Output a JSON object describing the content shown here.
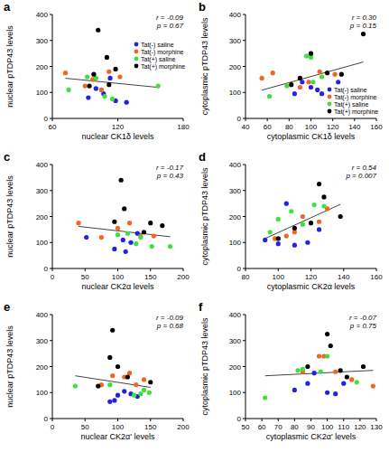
{
  "chart_data": [
    {
      "type": "scatter",
      "title": "a",
      "x_label": "nuclear CK1δ levels",
      "y_label": "nuclear pTDP43 levels",
      "annotations": [
        "r = -0.09",
        "p = 0.67"
      ],
      "xlim": [
        60,
        180
      ],
      "xticks": [
        60,
        120,
        180
      ],
      "ylim": [
        0,
        400
      ],
      "yticks": [
        0,
        100,
        200,
        300,
        400
      ],
      "marker": "circle",
      "legend": "right",
      "series": [
        {
          "name": "Tat(-) saline",
          "color": "#2323e0",
          "x": [
            93,
            100,
            107,
            113,
            118,
            128
          ],
          "values": [
            80,
            115,
            95,
            155,
            68,
            62
          ]
        },
        {
          "name": "Tat(-) morphine",
          "color": "#f26522",
          "x": [
            72,
            90,
            97,
            105,
            112,
            122
          ],
          "values": [
            175,
            125,
            150,
            110,
            180,
            160
          ]
        },
        {
          "name": "Tat(+) saline",
          "color": "#3ee03e",
          "x": [
            75,
            92,
            100,
            108,
            115,
            157
          ],
          "values": [
            110,
            160,
            155,
            85,
            75,
            125
          ]
        },
        {
          "name": "Tat(+) morphine",
          "color": "#000000",
          "x": [
            94,
            98,
            102,
            110,
            118,
            112
          ],
          "values": [
            125,
            170,
            340,
            235,
            190,
            130
          ]
        }
      ]
    },
    {
      "type": "scatter",
      "title": "b",
      "x_label": "cytoplasmic CK1δ levels",
      "y_label": "cytoplasmic pTDP43 levels",
      "annotations": [
        "r = 0.30",
        "p = 0.15"
      ],
      "xlim": [
        40,
        160
      ],
      "xticks": [
        40,
        60,
        80,
        100,
        120,
        140,
        160
      ],
      "ylim": [
        0,
        400
      ],
      "yticks": [
        0,
        100,
        200,
        300,
        400
      ],
      "marker": "circle",
      "legend": "lower right",
      "series": [
        {
          "name": "Tat(-) saline",
          "color": "#2323e0",
          "x": [
            85,
            92,
            100,
            106,
            110,
            125
          ],
          "values": [
            95,
            140,
            120,
            110,
            95,
            140
          ]
        },
        {
          "name": "Tat(-) morphine",
          "color": "#f26522",
          "x": [
            55,
            65,
            90,
            98,
            108,
            122
          ],
          "values": [
            155,
            175,
            120,
            140,
            180,
            170
          ]
        },
        {
          "name": "Tat(+) saline",
          "color": "#3ee03e",
          "x": [
            62,
            78,
            96,
            100,
            102,
            110
          ],
          "values": [
            85,
            125,
            240,
            235,
            140,
            160
          ]
        },
        {
          "name": "Tat(+) morphine",
          "color": "#000000",
          "x": [
            82,
            90,
            100,
            115,
            128,
            148
          ],
          "values": [
            130,
            155,
            250,
            175,
            170,
            325
          ]
        }
      ]
    },
    {
      "type": "scatter",
      "title": "c",
      "x_label": "nuclear CK2α levels",
      "y_label": "nuclear pTDP43 levels",
      "annotations": [
        "r = -0.17",
        "p = 0.43"
      ],
      "xlim": [
        0,
        200
      ],
      "xticks": [
        0,
        50,
        100,
        150,
        200
      ],
      "ylim": [
        0,
        400
      ],
      "yticks": [
        0,
        100,
        200,
        300,
        400
      ],
      "marker": "circle",
      "series": [
        {
          "name": "Tat(-) saline",
          "color": "#2323e0",
          "x": [
            52,
            95,
            108,
            112,
            120,
            130
          ],
          "values": [
            120,
            75,
            110,
            65,
            100,
            135
          ]
        },
        {
          "name": "Tat(-) morphine",
          "color": "#f26522",
          "x": [
            40,
            75,
            100,
            118,
            135,
            155
          ],
          "values": [
            175,
            120,
            155,
            175,
            125,
            125
          ]
        },
        {
          "name": "Tat(+) saline",
          "color": "#3ee03e",
          "x": [
            100,
            115,
            128,
            135,
            152,
            180
          ],
          "values": [
            130,
            135,
            95,
            120,
            85,
            85
          ]
        },
        {
          "name": "Tat(+) morphine",
          "color": "#000000",
          "x": [
            95,
            105,
            110,
            140,
            150,
            168
          ],
          "values": [
            180,
            340,
            230,
            140,
            175,
            165
          ]
        }
      ]
    },
    {
      "type": "scatter",
      "title": "d",
      "x_label": "cytoplasmic CK2α levels",
      "y_label": "cytoplasmic pTDP43 levels",
      "annotations": [
        "r = 0.54",
        "p = 0.007"
      ],
      "xlim": [
        80,
        160
      ],
      "xticks": [
        80,
        100,
        120,
        140,
        160
      ],
      "ylim": [
        0,
        400
      ],
      "yticks": [
        0,
        100,
        200,
        300,
        400
      ],
      "marker": "circle",
      "series": [
        {
          "name": "Tat(-) saline",
          "color": "#2323e0",
          "x": [
            92,
            100,
            105,
            110,
            118,
            125
          ],
          "values": [
            110,
            95,
            250,
            90,
            100,
            150
          ]
        },
        {
          "name": "Tat(-) morphine",
          "color": "#f26522",
          "x": [
            98,
            105,
            110,
            115,
            125,
            130
          ],
          "values": [
            115,
            125,
            140,
            200,
            180,
            230
          ]
        },
        {
          "name": "Tat(+) saline",
          "color": "#3ee03e",
          "x": [
            95,
            100,
            108,
            115,
            122,
            128
          ],
          "values": [
            140,
            190,
            220,
            170,
            245,
            240
          ]
        },
        {
          "name": "Tat(+) morphine",
          "color": "#000000",
          "x": [
            100,
            110,
            120,
            125,
            128,
            138
          ],
          "values": [
            115,
            155,
            175,
            325,
            275,
            200
          ]
        }
      ]
    },
    {
      "type": "scatter",
      "title": "e",
      "x_label": "nuclear CK2α' levels",
      "y_label": "nuclear pTDP43 levels",
      "annotations": [
        "r = -0.09",
        "p = 0.68"
      ],
      "xlim": [
        0,
        200
      ],
      "xticks": [
        0,
        50,
        100,
        150,
        200
      ],
      "ylim": [
        0,
        400
      ],
      "yticks": [
        0,
        100,
        200,
        300,
        400
      ],
      "marker": "circle",
      "series": [
        {
          "name": "Tat(-) saline",
          "color": "#2323e0",
          "x": [
            88,
            95,
            100,
            110,
            120,
            130
          ],
          "values": [
            65,
            70,
            90,
            105,
            95,
            85
          ]
        },
        {
          "name": "Tat(-) morphine",
          "color": "#f26522",
          "x": [
            75,
            92,
            110,
            118,
            128,
            140
          ],
          "values": [
            130,
            165,
            160,
            175,
            130,
            150
          ]
        },
        {
          "name": "Tat(+) saline",
          "color": "#3ee03e",
          "x": [
            35,
            88,
            125,
            135,
            140,
            148
          ],
          "values": [
            125,
            130,
            90,
            95,
            110,
            100
          ]
        },
        {
          "name": "Tat(+) morphine",
          "color": "#000000",
          "x": [
            70,
            88,
            92,
            100,
            115,
            150
          ],
          "values": [
            125,
            235,
            340,
            200,
            160,
            140
          ]
        }
      ]
    },
    {
      "type": "scatter",
      "title": "f",
      "x_label": "cytoplasmic CK2α' levels",
      "y_label": "cytoplasmic pTDP43 levels",
      "annotations": [
        "r = -0.07",
        "p = 0.75"
      ],
      "xlim": [
        50,
        130
      ],
      "xticks": [
        50,
        60,
        70,
        80,
        90,
        100,
        110,
        120,
        130
      ],
      "ylim": [
        0,
        400
      ],
      "yticks": [
        0,
        100,
        200,
        300,
        400
      ],
      "marker": "circle",
      "series": [
        {
          "name": "Tat(-) saline",
          "color": "#2323e0",
          "x": [
            80,
            88,
            92,
            100,
            105,
            110
          ],
          "values": [
            110,
            135,
            175,
            100,
            95,
            135
          ]
        },
        {
          "name": "Tat(-) morphine",
          "color": "#f26522",
          "x": [
            85,
            95,
            98,
            105,
            115,
            128
          ],
          "values": [
            180,
            240,
            240,
            180,
            150,
            125
          ]
        },
        {
          "name": "Tat(+) saline",
          "color": "#3ee03e",
          "x": [
            62,
            82,
            85,
            96,
            100,
            118
          ],
          "values": [
            80,
            185,
            190,
            180,
            240,
            140
          ]
        },
        {
          "name": "Tat(+) morphine",
          "color": "#000000",
          "x": [
            88,
            100,
            102,
            108,
            112,
            122
          ],
          "values": [
            200,
            325,
            280,
            185,
            160,
            200
          ]
        }
      ]
    }
  ]
}
